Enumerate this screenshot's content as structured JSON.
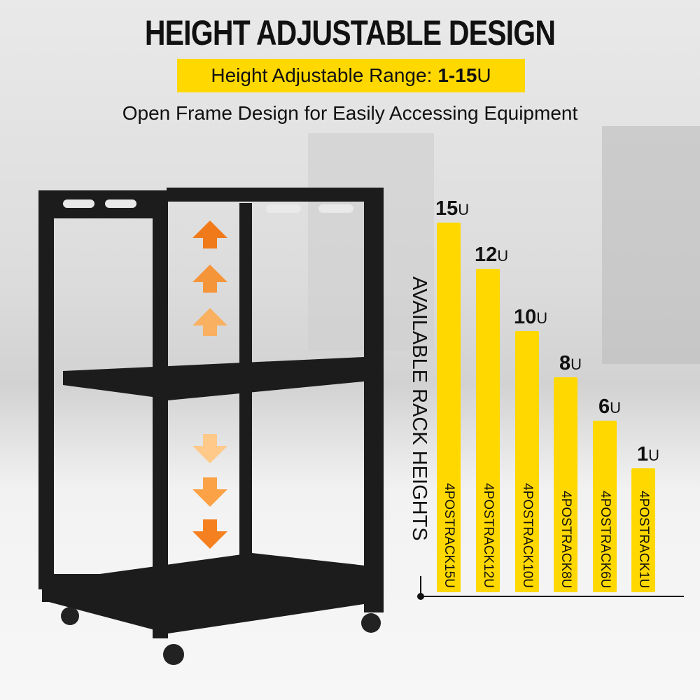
{
  "header": {
    "title": "HEIGHT ADJUSTABLE DESIGN",
    "banner_prefix": "Height Adjustable Range:",
    "banner_value": "1-15",
    "banner_unit": "U",
    "subtitle": "Open Frame Design for Easily Accessing Equipment"
  },
  "colors": {
    "accent": "#ffd800",
    "text": "#111111",
    "arrow_top": "#f07a1a",
    "arrow_fade": "#ffd9a0"
  },
  "chart_data": {
    "type": "bar",
    "ylabel": "AVAILABLE RACK HEIGHTS",
    "unit": "U",
    "categories": [
      "4POSTRACK15U",
      "4POSTRACK12U",
      "4POSTRACK10U",
      "4POSTRACK8U",
      "4POSTRACK6U",
      "4POSTRACK1U"
    ],
    "values": [
      15,
      12,
      10,
      8,
      6,
      1
    ],
    "value_labels": [
      "15",
      "12",
      "10",
      "8",
      "6",
      "1"
    ],
    "grid": false
  }
}
